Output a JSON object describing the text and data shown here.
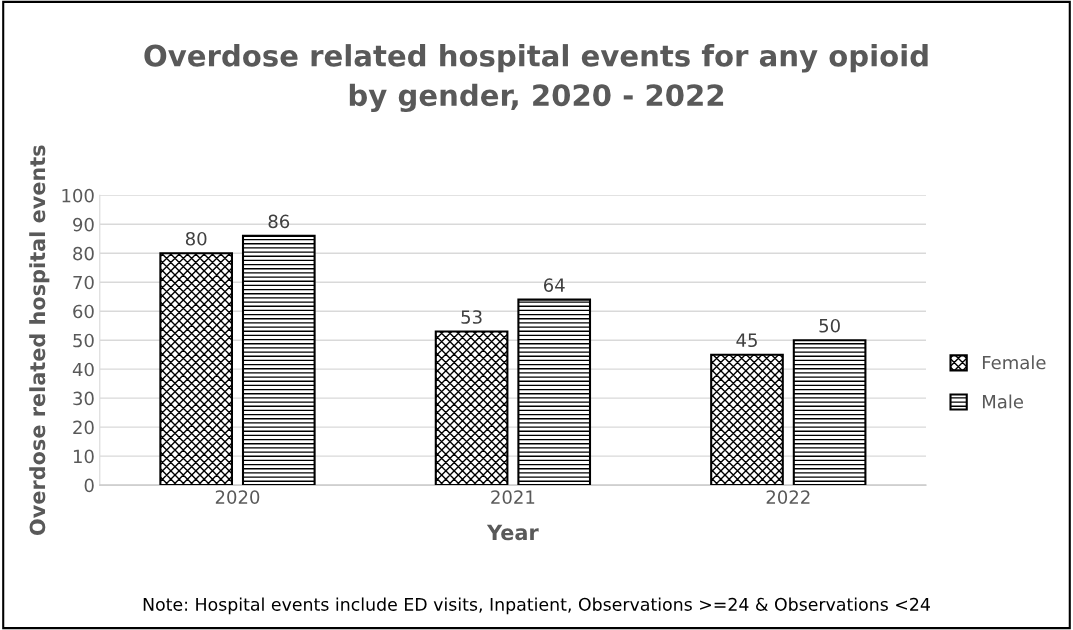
{
  "chart_data": {
    "type": "bar",
    "title": "Overdose related hospital events for any opioid\nby gender, 2020 - 2022",
    "xlabel": "Year",
    "ylabel": "Overdose related hospital events",
    "categories": [
      "2020",
      "2021",
      "2022"
    ],
    "series": [
      {
        "name": "Female",
        "color": "#000000",
        "values": [
          80,
          53,
          45
        ]
      },
      {
        "name": "Male",
        "color": "#000000",
        "values": [
          86,
          64,
          50
        ]
      }
    ],
    "ylim": [
      0,
      100
    ],
    "yticks": [
      0,
      10,
      20,
      30,
      40,
      50,
      60,
      70,
      80,
      90,
      100
    ],
    "grid": "y",
    "legend": "right",
    "data_labels": true,
    "annotations": [
      "Note: Hospital events include ED visits, Inpatient, Observations >=24 & Observations <24"
    ]
  }
}
